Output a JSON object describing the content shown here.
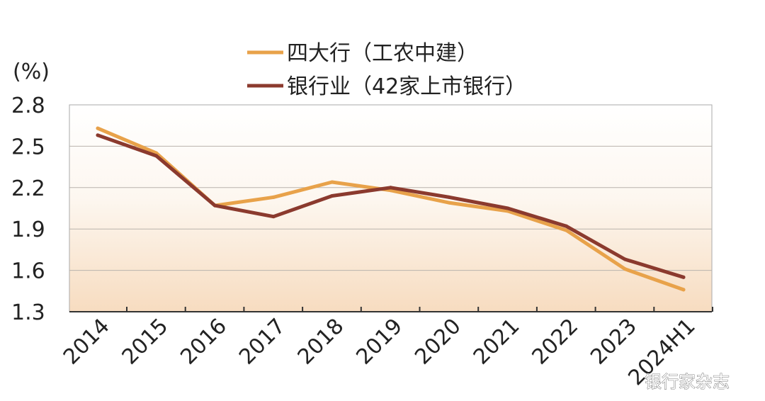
{
  "chart_data": {
    "type": "line",
    "unit_label": "(%)",
    "categories": [
      "2014",
      "2015",
      "2016",
      "2017",
      "2018",
      "2019",
      "2020",
      "2021",
      "2022",
      "2023",
      "2024H1"
    ],
    "ylim": [
      1.3,
      2.8
    ],
    "yticks": [
      "2.8",
      "2.5",
      "2.2",
      "1.9",
      "1.6",
      "1.3"
    ],
    "ytick_values": [
      2.8,
      2.5,
      2.2,
      1.9,
      1.6,
      1.3
    ],
    "grid": true,
    "legend_position": "top-center",
    "series": [
      {
        "name": "四大行（工农中建）",
        "color": "#E8A24A",
        "values": [
          2.63,
          2.45,
          2.07,
          2.13,
          2.24,
          2.18,
          2.09,
          2.03,
          1.89,
          1.61,
          1.46
        ]
      },
      {
        "name": "银行业（42家上市银行）",
        "color": "#8B3A2E",
        "values": [
          2.58,
          2.43,
          2.07,
          1.99,
          2.14,
          2.2,
          2.13,
          2.05,
          1.92,
          1.68,
          1.55
        ]
      }
    ]
  },
  "watermark": "银行家杂志"
}
